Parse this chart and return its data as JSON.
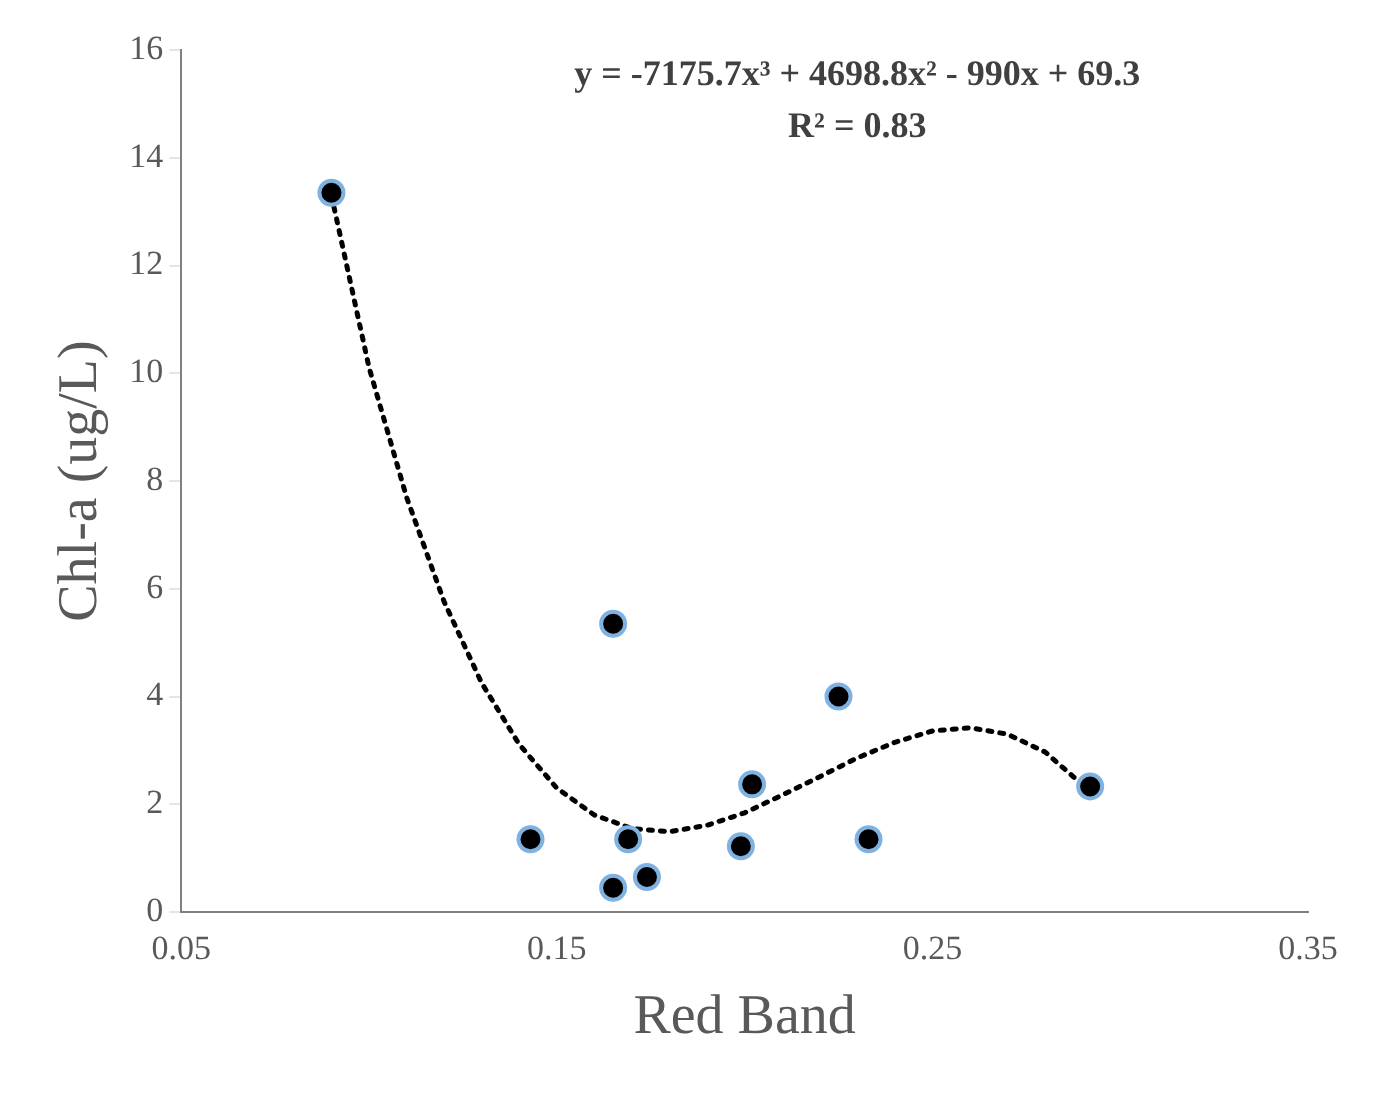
{
  "chart_data": {
    "type": "scatter",
    "xlabel": "Red Band",
    "ylabel": "Chl-a (ug/L)",
    "annotations": [
      "y = -7175.7x³ + 4698.8x² - 990x + 69.3",
      "R² = 0.83"
    ],
    "xlim": [
      0.05,
      0.35
    ],
    "xticks": [
      0.05,
      0.15,
      0.25,
      0.35
    ],
    "ylim": [
      0,
      16
    ],
    "yticks": [
      0,
      2,
      4,
      6,
      8,
      10,
      12,
      14,
      16
    ],
    "grid": false,
    "legend": false,
    "series": [
      {
        "color": "#000000",
        "marker": "circle",
        "x": [
          0.09,
          0.143,
          0.165,
          0.165,
          0.169,
          0.174,
          0.199,
          0.202,
          0.225,
          0.233,
          0.292
        ],
        "values": [
          13.35,
          1.35,
          5.35,
          0.45,
          1.35,
          0.65,
          1.22,
          2.37,
          4.0,
          1.35,
          2.33
        ]
      },
      {
        "type": "line",
        "color": "#000000",
        "line_style": "dotted",
        "marker": "none",
        "x": [
          0.09,
          0.1,
          0.11,
          0.12,
          0.13,
          0.14,
          0.15,
          0.16,
          0.17,
          0.18,
          0.19,
          0.2,
          0.21,
          0.22,
          0.23,
          0.24,
          0.25,
          0.26,
          0.27,
          0.28,
          0.29
        ],
        "values": [
          13.3,
          10.11,
          7.7,
          5.76,
          4.25,
          3.11,
          2.3,
          1.8,
          1.55,
          1.49,
          1.61,
          1.84,
          2.17,
          2.51,
          2.86,
          3.15,
          3.36,
          3.42,
          3.3,
          2.97,
          2.36
        ]
      }
    ]
  }
}
